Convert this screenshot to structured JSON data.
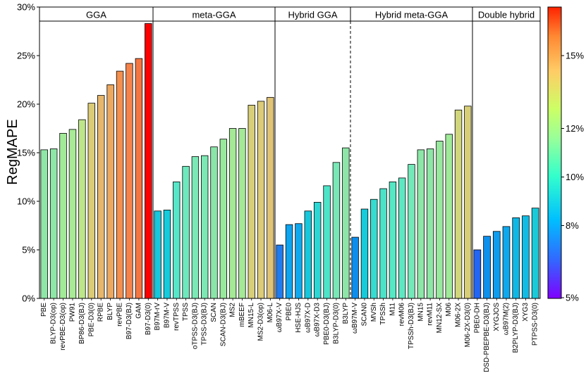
{
  "chart_data": {
    "type": "bar",
    "ylabel": "RegMAPE",
    "ylim": [
      0,
      30
    ],
    "yticks": [
      "0%",
      "5%",
      "10%",
      "15%",
      "20%",
      "25%",
      "30%"
    ],
    "ytick_values": [
      0,
      5,
      10,
      15,
      20,
      25,
      30
    ],
    "colorbar": {
      "range": [
        5,
        17
      ],
      "ticks": [
        "5%",
        "8%",
        "10%",
        "12%",
        "15%"
      ],
      "tick_values": [
        5,
        8,
        10,
        12,
        15
      ],
      "colors": [
        "#7f00ff",
        "#3366ff",
        "#00bfff",
        "#33ffcc",
        "#99ff99",
        "#ccff66",
        "#ffcc66",
        "#ff8833",
        "#ff2200"
      ]
    },
    "groups": [
      {
        "name": "GGA",
        "categories": [
          "PBE",
          "BLYP-D3(op)",
          "revPBE-D3(op)",
          "PW91",
          "BP86-D3(BJ)",
          "PBE-D3(0)",
          "RPBE",
          "BLYP",
          "revPBE",
          "B97-D3(BJ)",
          "GAM",
          "B97-D3(0)"
        ],
        "values": [
          15.3,
          15.4,
          17.0,
          17.4,
          18.4,
          20.1,
          20.9,
          22.0,
          23.4,
          24.2,
          24.7,
          28.3
        ],
        "colors": [
          "#8ee7a6",
          "#8ee7a6",
          "#a2ea98",
          "#a8ea95",
          "#bde68a",
          "#dccb76",
          "#e5b66c",
          "#eda860",
          "#f48f4e",
          "#f4834a",
          "#f37642",
          "#ff0000"
        ]
      },
      {
        "name": "meta-GGA",
        "categories": [
          "B97M-rV",
          "B97M-V",
          "revTPSS",
          "TPSS",
          "oTPSS-D3(BJ)",
          "TPSS-D3(BJ)",
          "SCAN",
          "SCAN-D3(BJ)",
          "MS2",
          "mBEEF",
          "MN15-L",
          "MS2-D3(op)",
          "M06-L"
        ],
        "values": [
          9.0,
          9.1,
          12.0,
          13.6,
          14.6,
          14.7,
          15.6,
          16.4,
          17.5,
          17.5,
          19.9,
          20.3,
          20.7
        ],
        "colors": [
          "#14c8dd",
          "#17cbdc",
          "#55e7c7",
          "#6ce9bd",
          "#7be8b5",
          "#7de8b3",
          "#8ae6a8",
          "#99e99d",
          "#a5e996",
          "#a5e996",
          "#d8ce79",
          "#dccb78",
          "#e0c374"
        ]
      },
      {
        "name": "Hybrid GGA",
        "categories": [
          "ωB97X-V",
          "PBE0",
          "HSE-HJS",
          "ωB97X-D",
          "ωB97X-D3",
          "PBE0-D3(BJ)",
          "B3LYP-D3(0)",
          "B3LYP"
        ],
        "values": [
          5.5,
          7.6,
          7.7,
          9.0,
          9.9,
          11.6,
          14.0,
          15.5
        ],
        "colors": [
          "#1e7cf0",
          "#0ea4ee",
          "#0ea8ee",
          "#16c8dc",
          "#2dd7d4",
          "#4de3c8",
          "#78e8b7",
          "#8de6a7"
        ]
      },
      {
        "name": "Hybrid meta-GGA",
        "categories": [
          "ωB97M-V",
          "SCAN0",
          "MVSh",
          "TPSSh",
          "M11",
          "revM06",
          "TPSSh-D3(BJ)",
          "MN15",
          "revM11",
          "MN12-SX",
          "M06",
          "M06-2X",
          "M06-2X-D3(0)"
        ],
        "values": [
          6.3,
          9.2,
          10.2,
          11.3,
          12.0,
          12.4,
          13.8,
          15.3,
          15.4,
          16.2,
          16.9,
          19.4,
          19.8
        ],
        "colors": [
          "#0e8ded",
          "#17cbdb",
          "#35dcd0",
          "#4be2c8",
          "#56e7c4",
          "#5ee8c2",
          "#73e9ba",
          "#8de6a7",
          "#8ee6a6",
          "#98e89e",
          "#a0e999",
          "#d1d67c",
          "#d8ce77"
        ]
      },
      {
        "name": "Double hybrid",
        "categories": [
          "PBE0-DH",
          "DSD-PBEPBE-D3(BJ)",
          "XYGJOS",
          "ωB97M(2)",
          "B2PLYP-D3(BJ)",
          "XYG3",
          "PTPSS-D3(0)"
        ],
        "values": [
          5.0,
          6.4,
          6.9,
          7.4,
          8.3,
          8.5,
          9.3
        ],
        "colors": [
          "#2266f2",
          "#0e90ed",
          "#0e9ded",
          "#0ea8ee",
          "#0eb8e6",
          "#10bce4",
          "#1acad9"
        ]
      }
    ]
  }
}
